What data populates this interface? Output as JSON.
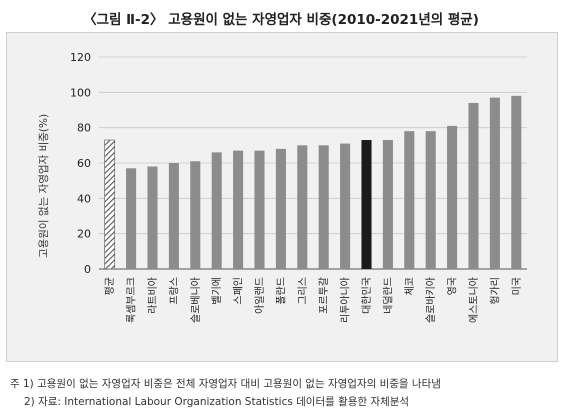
{
  "title": "〈그림 Ⅱ-2〉 고용원이 없는 자영업자 비중(2010-2021년의 평균)",
  "notes": [
    "주 1) 고용원이 없는 자영업자 비중은 전체 자영업자 대비 고용원이 없는 자영업자의 비중을 나타냄",
    "2) 자료: International Labour Organization Statistics 데이터를 활용한 자체분석"
  ],
  "colors": {
    "bar": "#8c8c8c",
    "highlight": "#1a1a1a",
    "average_hatch": "#555555",
    "grid": "#c8c8c8",
    "panel": "#f1f1f1"
  },
  "chart_data": {
    "type": "bar",
    "title": "〈그림 Ⅱ-2〉 고용원이 없는 자영업자 비중(2010-2021년의 평균)",
    "xlabel": "",
    "ylabel": "고용원이 없는 자영업자 비중(%)",
    "ylim": [
      0,
      120
    ],
    "yticks": [
      0,
      20,
      40,
      60,
      80,
      100,
      120
    ],
    "grid": true,
    "categories": [
      "평균",
      "룩셈부르크",
      "라트비아",
      "프랑스",
      "슬로베니아",
      "벨기에",
      "스페인",
      "아일랜드",
      "폴란드",
      "그리스",
      "포르투갈",
      "리투아니아",
      "대한민국",
      "네덜란드",
      "체코",
      "슬로바키아",
      "영국",
      "에스토니아",
      "헝가리",
      "미국"
    ],
    "values": [
      73,
      57,
      58,
      60,
      61,
      66,
      67,
      67,
      68,
      70,
      70,
      71,
      73,
      73,
      78,
      78,
      81,
      94,
      97,
      98
    ],
    "styles": [
      "hatched",
      "normal",
      "normal",
      "normal",
      "normal",
      "normal",
      "normal",
      "normal",
      "normal",
      "normal",
      "normal",
      "normal",
      "highlight",
      "normal",
      "normal",
      "normal",
      "normal",
      "normal",
      "normal",
      "normal"
    ]
  }
}
